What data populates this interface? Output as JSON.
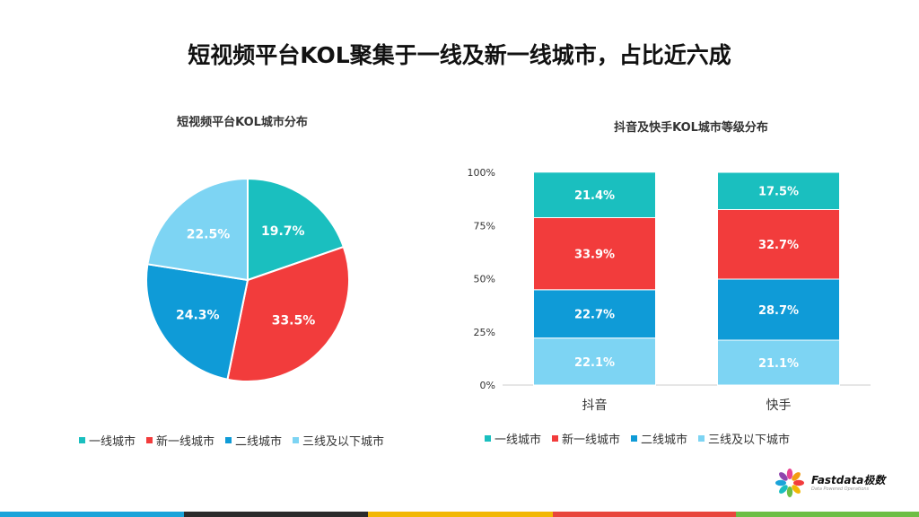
{
  "title": "短视频平台KOL聚集于一线及新一线城市，占比近六成",
  "colors": {
    "tier1": "#1ABFBF",
    "newtier1": "#F23C3C",
    "tier2": "#0F9BD7",
    "tier3": "#7DD4F3"
  },
  "chart_data": [
    {
      "type": "pie",
      "title": "短视频平台KOL城市分布",
      "labels": [
        "一线城市",
        "新一线城市",
        "二线城市",
        "三线及以下城市"
      ],
      "values": [
        19.7,
        33.5,
        24.3,
        22.5
      ],
      "value_labels": [
        "19.7%",
        "33.5%",
        "24.3%",
        "22.5%"
      ],
      "legend_position": "bottom"
    },
    {
      "type": "bar",
      "stacked": true,
      "title": "抖音及快手KOL城市等级分布",
      "categories": [
        "抖音",
        "快手"
      ],
      "y_ticks": [
        "0%",
        "25%",
        "50%",
        "75%",
        "100%"
      ],
      "ylim": [
        0,
        100
      ],
      "series": [
        {
          "name": "一线城市",
          "values": [
            21.4,
            17.5
          ],
          "labels": [
            "21.4%",
            "17.5%"
          ]
        },
        {
          "name": "新一线城市",
          "values": [
            33.9,
            32.7
          ],
          "labels": [
            "33.9%",
            "32.7%"
          ]
        },
        {
          "name": "二线城市",
          "values": [
            22.7,
            28.7
          ],
          "labels": [
            "22.7%",
            "28.7%"
          ]
        },
        {
          "name": "三线及以下城市",
          "values": [
            22.1,
            21.1
          ],
          "labels": [
            "22.1%",
            "21.1%"
          ]
        }
      ],
      "legend_position": "bottom"
    }
  ],
  "logo": {
    "name": "Fastdata极数",
    "tagline": "Data Powered Operations"
  },
  "footer_bar_colors": [
    "#1AA3D9",
    "#2B2B2B",
    "#F2B705",
    "#E8463C",
    "#6DBE45"
  ]
}
